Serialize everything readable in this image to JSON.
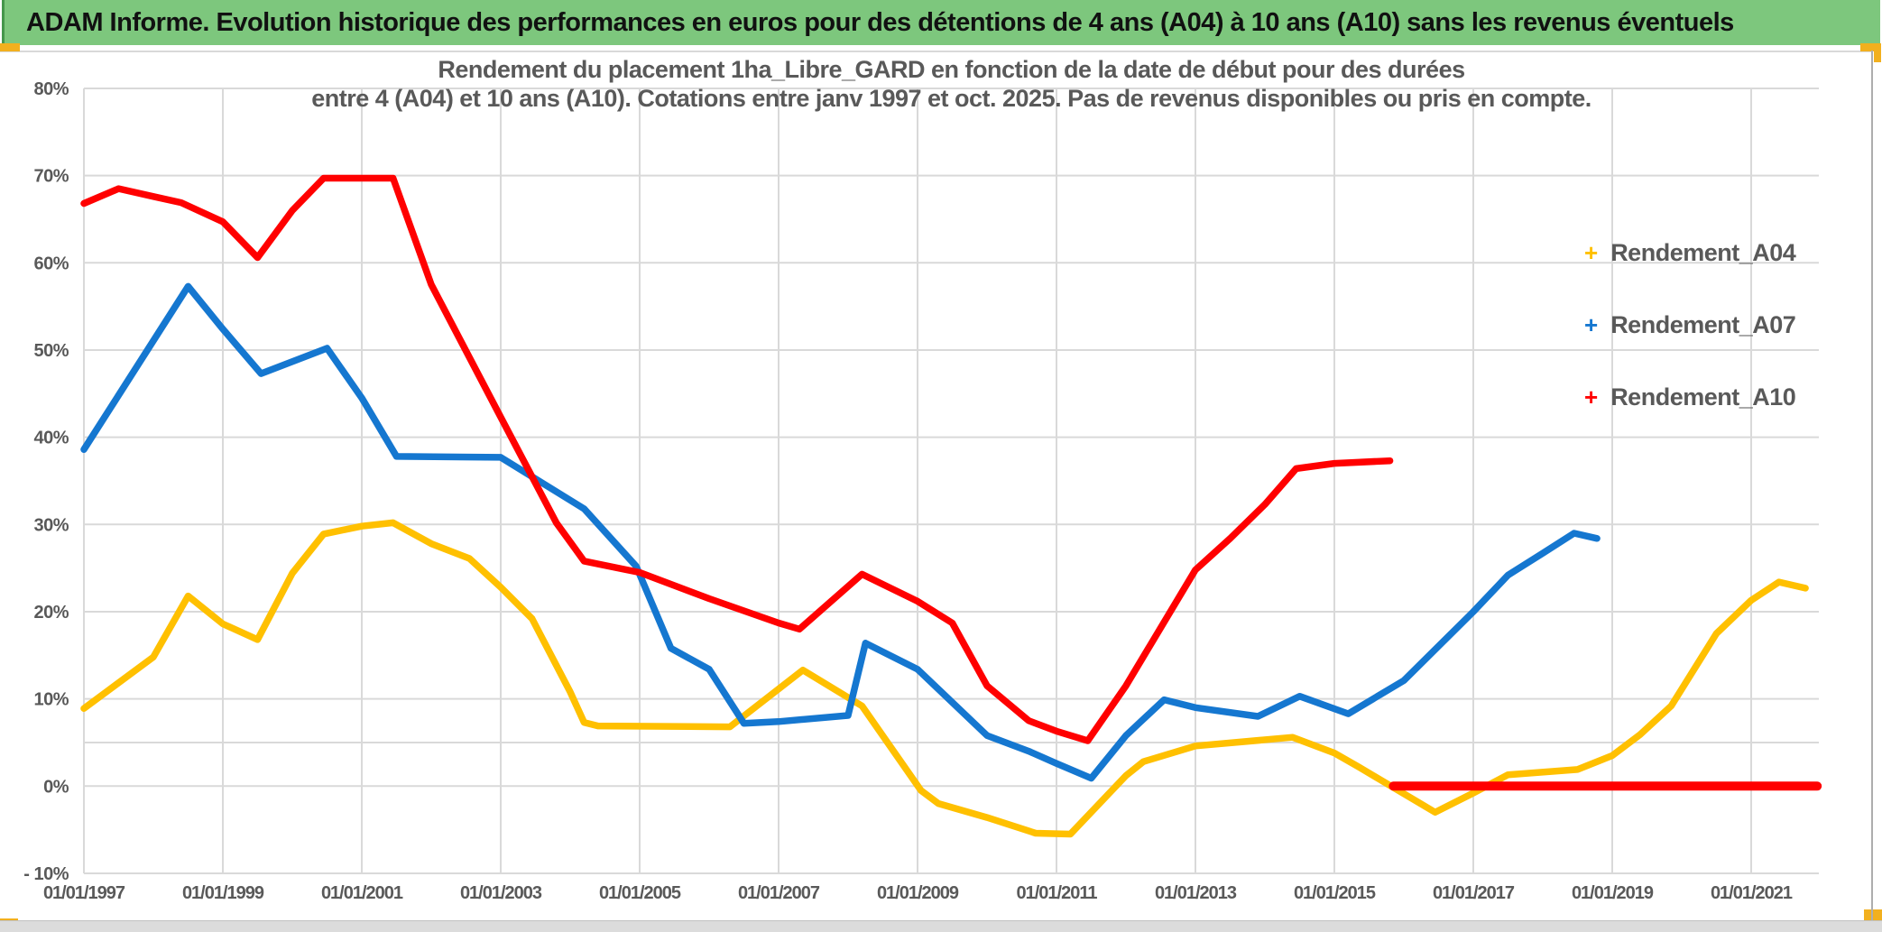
{
  "window": {
    "title_bar": "ADAM Informe. Evolution historique des performances en euros pour des détentions de 4 ans (A04) à 10 ans (A10) sans les revenus éventuels"
  },
  "colors": {
    "header_green": "#7DC77D",
    "header_green_edge": "#44974B",
    "accent_gold": "#F2B01E",
    "grid_gray": "#D9D9D9",
    "axis_text_gray": "#595959",
    "series_a04_yellow": "#FFC000",
    "series_a07_blue": "#1577D0",
    "series_a10_red": "#FF0000",
    "frame_gray": "#ADADAD"
  },
  "chart_data": {
    "type": "line",
    "title_line1": "Rendement du placement 1ha_Libre_GARD en fonction de la date de début pour des durées",
    "title_line2": "entre 4 (A04) et 10 ans (A10). Cotations entre janv 1997 et oct. 2025. Pas de revenus disponibles ou pris en compte.",
    "grid": true,
    "legend_position": "right-inside",
    "x_axis": {
      "min_year": 1997,
      "max_year": 2022,
      "tick_years": [
        1997,
        1999,
        2001,
        2003,
        2005,
        2007,
        2009,
        2011,
        2013,
        2015,
        2017,
        2019,
        2021
      ],
      "tick_labels": [
        "01/01/1997",
        "01/01/1999",
        "01/01/2001",
        "01/01/2003",
        "01/01/2005",
        "01/01/2007",
        "01/01/2009",
        "01/01/2011",
        "01/01/2013",
        "01/01/2015",
        "01/01/2017",
        "01/01/2019",
        "01/01/2021"
      ]
    },
    "y_axis": {
      "min": -10,
      "max": 80,
      "unit": "%",
      "tick_values": [
        80,
        70,
        60,
        50,
        40,
        30,
        20,
        10,
        0,
        -10
      ],
      "tick_labels": [
        "80%",
        "70%",
        "60%",
        "50%",
        "40%",
        "30%",
        "20%",
        "10%",
        "0%",
        "- 10%"
      ]
    },
    "reference_line_y": 5,
    "legend": [
      {
        "label": "Rendement_A04",
        "marker": "+",
        "color": "#FFC000"
      },
      {
        "label": "Rendement_A07",
        "marker": "+",
        "color": "#1577D0"
      },
      {
        "label": "Rendement_A10",
        "marker": "+",
        "color": "#FF0000"
      }
    ],
    "series": [
      {
        "name": "Rendement_A04",
        "color": "#FFC000",
        "segments": [
          [
            [
              1997.0,
              8.9
            ],
            [
              1998.0,
              14.8
            ],
            [
              1998.5,
              21.8
            ],
            [
              1999.0,
              18.6
            ],
            [
              1999.5,
              16.8
            ],
            [
              2000.0,
              24.4
            ],
            [
              2000.45,
              28.9
            ],
            [
              2001.0,
              29.8
            ],
            [
              2001.45,
              30.2
            ],
            [
              2002.0,
              27.8
            ],
            [
              2002.55,
              26.1
            ],
            [
              2003.0,
              22.8
            ],
            [
              2003.45,
              19.2
            ],
            [
              2004.0,
              10.8
            ],
            [
              2004.2,
              7.3
            ],
            [
              2004.4,
              6.9
            ],
            [
              2006.3,
              6.8
            ],
            [
              2007.35,
              13.3
            ],
            [
              2008.2,
              9.2
            ],
            [
              2009.05,
              -0.5
            ],
            [
              2009.3,
              -2.0
            ],
            [
              2010.0,
              -3.6
            ],
            [
              2010.7,
              -5.4
            ],
            [
              2011.2,
              -5.5
            ],
            [
              2012.0,
              1.2
            ],
            [
              2012.25,
              2.8
            ],
            [
              2013.0,
              4.6
            ],
            [
              2014.4,
              5.6
            ],
            [
              2015.0,
              3.8
            ],
            [
              2015.35,
              2.2
            ],
            [
              2016.45,
              -3.0
            ],
            [
              2017.0,
              -0.8
            ],
            [
              2017.5,
              1.3
            ],
            [
              2018.5,
              1.9
            ],
            [
              2019.0,
              3.5
            ],
            [
              2019.4,
              5.9
            ],
            [
              2019.85,
              9.2
            ],
            [
              2020.5,
              17.5
            ],
            [
              2021.0,
              21.3
            ],
            [
              2021.4,
              23.4
            ],
            [
              2021.78,
              22.7
            ]
          ]
        ]
      },
      {
        "name": "Rendement_A07",
        "color": "#1577D0",
        "segments": [
          [
            [
              1997.0,
              38.6
            ],
            [
              1998.5,
              57.3
            ],
            [
              1999.0,
              52.4
            ],
            [
              1999.55,
              47.3
            ],
            [
              2000.5,
              50.2
            ],
            [
              2001.0,
              44.5
            ],
            [
              2001.5,
              37.8
            ],
            [
              2003.0,
              37.7
            ],
            [
              2004.2,
              31.8
            ],
            [
              2004.95,
              25.2
            ],
            [
              2005.45,
              15.8
            ],
            [
              2006.0,
              13.4
            ],
            [
              2006.5,
              7.2
            ],
            [
              2007.0,
              7.4
            ],
            [
              2008.0,
              8.1
            ],
            [
              2008.25,
              16.4
            ],
            [
              2009.0,
              13.4
            ],
            [
              2010.0,
              5.8
            ],
            [
              2010.6,
              4.0
            ],
            [
              2011.0,
              2.6
            ],
            [
              2011.5,
              0.9
            ],
            [
              2012.0,
              5.8
            ],
            [
              2012.55,
              9.9
            ],
            [
              2013.0,
              9.0
            ],
            [
              2013.9,
              8.0
            ],
            [
              2014.5,
              10.3
            ],
            [
              2015.2,
              8.3
            ],
            [
              2016.0,
              12.1
            ],
            [
              2017.0,
              20.0
            ],
            [
              2017.5,
              24.2
            ],
            [
              2018.0,
              26.7
            ],
            [
              2018.45,
              29.0
            ],
            [
              2018.78,
              28.4
            ]
          ]
        ]
      },
      {
        "name": "Rendement_A10",
        "color": "#FF0000",
        "segments": [
          [
            [
              1997.0,
              66.8
            ],
            [
              1997.5,
              68.5
            ],
            [
              1998.0,
              67.6
            ],
            [
              1998.4,
              66.9
            ],
            [
              1999.0,
              64.7
            ],
            [
              1999.5,
              60.6
            ],
            [
              2000.0,
              66.0
            ],
            [
              2000.45,
              69.7
            ],
            [
              2001.45,
              69.7
            ],
            [
              2002.0,
              57.5
            ],
            [
              2003.0,
              42.3
            ],
            [
              2003.8,
              30.2
            ],
            [
              2004.2,
              25.8
            ],
            [
              2005.0,
              24.5
            ],
            [
              2006.0,
              21.5
            ],
            [
              2007.0,
              18.7
            ],
            [
              2007.3,
              18.0
            ],
            [
              2008.2,
              24.3
            ],
            [
              2009.0,
              21.2
            ],
            [
              2009.5,
              18.7
            ],
            [
              2010.0,
              11.5
            ],
            [
              2010.6,
              7.5
            ],
            [
              2011.0,
              6.3
            ],
            [
              2011.45,
              5.2
            ],
            [
              2012.0,
              11.5
            ],
            [
              2013.0,
              24.8
            ],
            [
              2013.5,
              28.4
            ],
            [
              2014.0,
              32.3
            ],
            [
              2014.45,
              36.4
            ],
            [
              2015.0,
              37.0
            ],
            [
              2015.8,
              37.3
            ]
          ],
          [
            [
              2015.85,
              0.0
            ],
            [
              2021.95,
              0.0
            ]
          ]
        ]
      }
    ]
  }
}
